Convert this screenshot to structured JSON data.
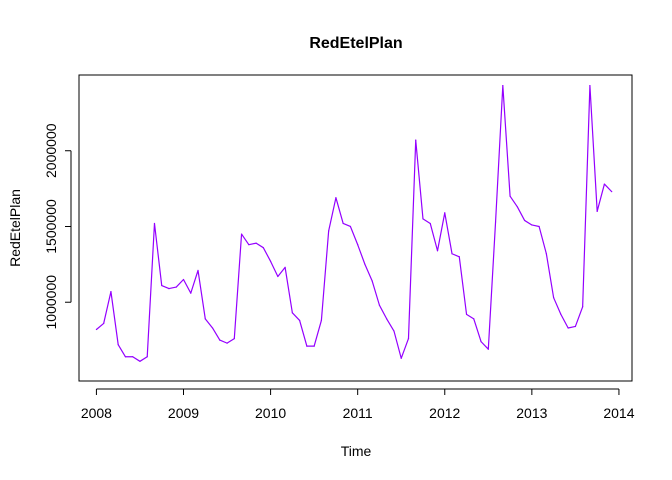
{
  "chart_data": {
    "type": "line",
    "title": "RedEtelPlan",
    "xlabel": "Time",
    "ylabel": "RedEtelPlan",
    "xlim": [
      2007.8,
      2014.15
    ],
    "ylim": [
      480000,
      2500000
    ],
    "x_ticks": [
      2008,
      2009,
      2010,
      2011,
      2012,
      2013,
      2014
    ],
    "x_tick_labels": [
      "2008",
      "2009",
      "2010",
      "2011",
      "2012",
      "2013",
      "2014"
    ],
    "y_ticks": [
      1000000,
      1500000,
      2000000
    ],
    "y_tick_labels": [
      "1000000",
      "1500000",
      "2000000"
    ],
    "grid": false,
    "line_color": "#9400FF",
    "series": [
      {
        "start": 2008,
        "frequency": 12,
        "values": [
          820000,
          860000,
          1070000,
          720000,
          640000,
          640000,
          610000,
          640000,
          1520000,
          1110000,
          1090000,
          1100000,
          1150000,
          1060000,
          1210000,
          890000,
          830000,
          750000,
          730000,
          760000,
          1450000,
          1380000,
          1390000,
          1360000,
          1270000,
          1170000,
          1230000,
          930000,
          880000,
          710000,
          710000,
          880000,
          1470000,
          1690000,
          1520000,
          1500000,
          1380000,
          1250000,
          1140000,
          980000,
          890000,
          810000,
          630000,
          760000,
          2070000,
          1550000,
          1520000,
          1340000,
          1590000,
          1320000,
          1300000,
          920000,
          890000,
          740000,
          690000,
          1530000,
          2430000,
          1700000,
          1630000,
          1540000,
          1510000,
          1500000,
          1320000,
          1030000,
          920000,
          830000,
          840000,
          970000,
          2430000,
          1600000,
          1780000,
          1730000
        ]
      }
    ]
  }
}
